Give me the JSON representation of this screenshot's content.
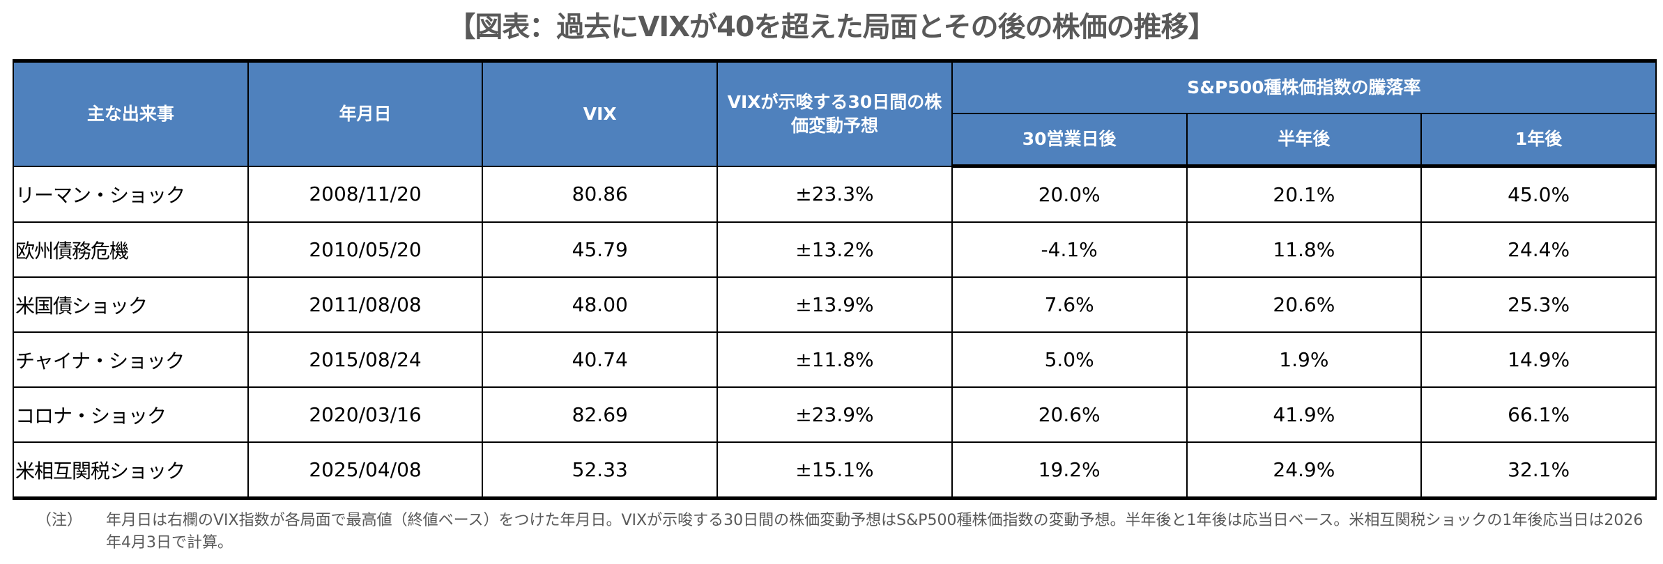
{
  "title": "【図表：過去にVIXが40を超えた局面とその後の株価の推移】",
  "headers": {
    "event": "主な出来事",
    "date": "年月日",
    "vix": "VIX",
    "implied": "VIXが示唆する30日間の株価変動予想",
    "sp_group": "S&P500種株価指数の騰落率",
    "d30": "30営業日後",
    "half": "半年後",
    "year": "1年後"
  },
  "rows": [
    {
      "event": "リーマン・ショック",
      "date": "2008/11/20",
      "vix": "80.86",
      "implied": "±23.3%",
      "d30": "20.0%",
      "half": "20.1%",
      "year": "45.0%"
    },
    {
      "event": "欧州債務危機",
      "date": "2010/05/20",
      "vix": "45.79",
      "implied": "±13.2%",
      "d30": "-4.1%",
      "half": "11.8%",
      "year": "24.4%"
    },
    {
      "event": "米国債ショック",
      "date": "2011/08/08",
      "vix": "48.00",
      "implied": "±13.9%",
      "d30": "7.6%",
      "half": "20.6%",
      "year": "25.3%"
    },
    {
      "event": "チャイナ・ショック",
      "date": "2015/08/24",
      "vix": "40.74",
      "implied": "±11.8%",
      "d30": "5.0%",
      "half": "1.9%",
      "year": "14.9%"
    },
    {
      "event": "コロナ・ショック",
      "date": "2020/03/16",
      "vix": "82.69",
      "implied": "±23.9%",
      "d30": "20.6%",
      "half": "41.9%",
      "year": "66.1%"
    },
    {
      "event": "米相互関税ショック",
      "date": "2025/04/08",
      "vix": "52.33",
      "implied": "±15.1%",
      "d30": "19.2%",
      "half": "24.9%",
      "year": "32.1%"
    }
  ],
  "note": {
    "label": "（注）",
    "text": "年月日は右欄のVIX指数が各局面で最高値（終値ベース）をつけた年月日。VIXが示唆する30日間の株価変動予想はS&P500種株価指数の変動予想。半年後と1年後は応当日ベース。米相互関税ショックの1年後応当日は2026年4月3日で計算。"
  }
}
